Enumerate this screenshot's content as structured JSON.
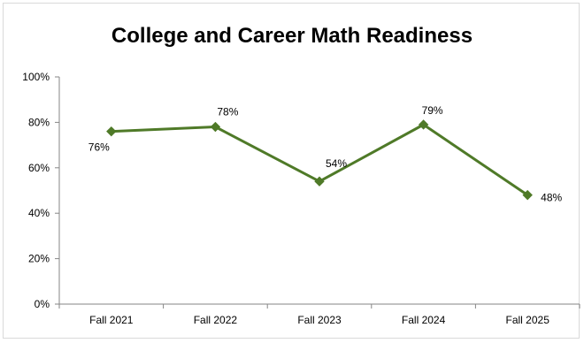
{
  "chart_data": {
    "type": "line",
    "title": "College and Career Math Readiness",
    "categories": [
      "Fall 2021",
      "Fall 2022",
      "Fall 2023",
      "Fall 2024",
      "Fall 2025"
    ],
    "series": [
      {
        "values": [
          76,
          78,
          54,
          79,
          48
        ],
        "data_labels": [
          "76%",
          "78%",
          "54%",
          "79%",
          "48%"
        ]
      }
    ],
    "y_ticks": [
      "0%",
      "20%",
      "40%",
      "60%",
      "80%",
      "100%"
    ],
    "ylim": [
      0,
      100
    ],
    "grid": false,
    "legend": "none",
    "line_color": "#4f7a28"
  }
}
